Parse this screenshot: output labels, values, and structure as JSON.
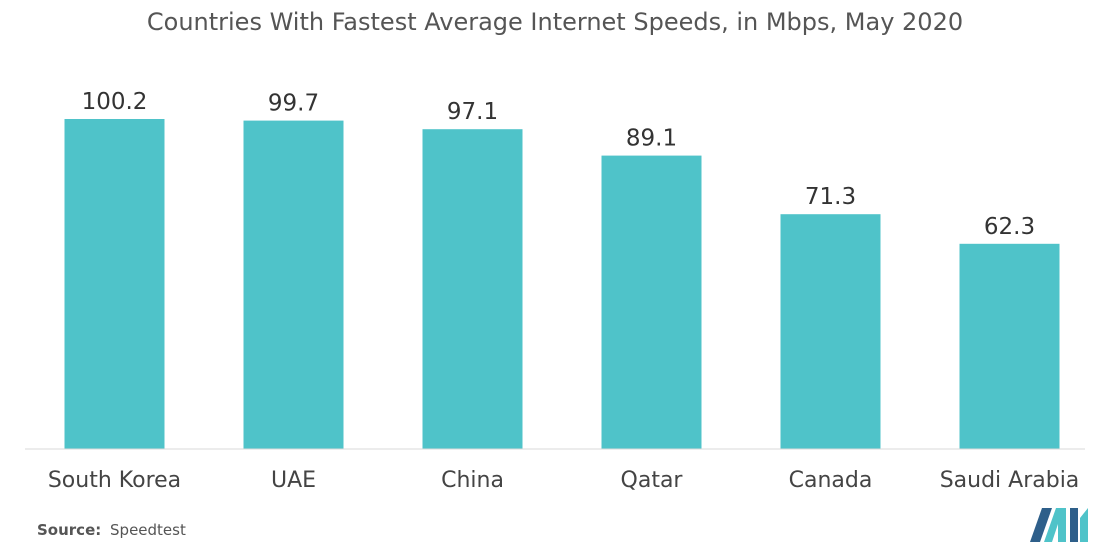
{
  "chart_data": {
    "type": "bar",
    "title": "Countries With Fastest Average Internet Speeds, in Mbps, May 2020",
    "categories": [
      "South Korea",
      "UAE",
      "China",
      "Qatar",
      "Canada",
      "Saudi Arabia"
    ],
    "values": [
      100.2,
      99.7,
      97.1,
      89.1,
      71.3,
      62.3
    ],
    "value_labels": [
      "100.2",
      "99.7",
      "97.1",
      "89.1",
      "71.3",
      "62.3"
    ],
    "xlabel": "",
    "ylabel": "",
    "ylim": [
      0,
      100.2
    ],
    "grid": false,
    "bar_color": "#4fc3c9"
  },
  "source": {
    "label": "Source:",
    "value": "Speedtest"
  },
  "logo": {
    "icon": "mordor-intelligence-logo-icon",
    "colors": [
      "#2e5f8a",
      "#4fc3c9"
    ]
  }
}
